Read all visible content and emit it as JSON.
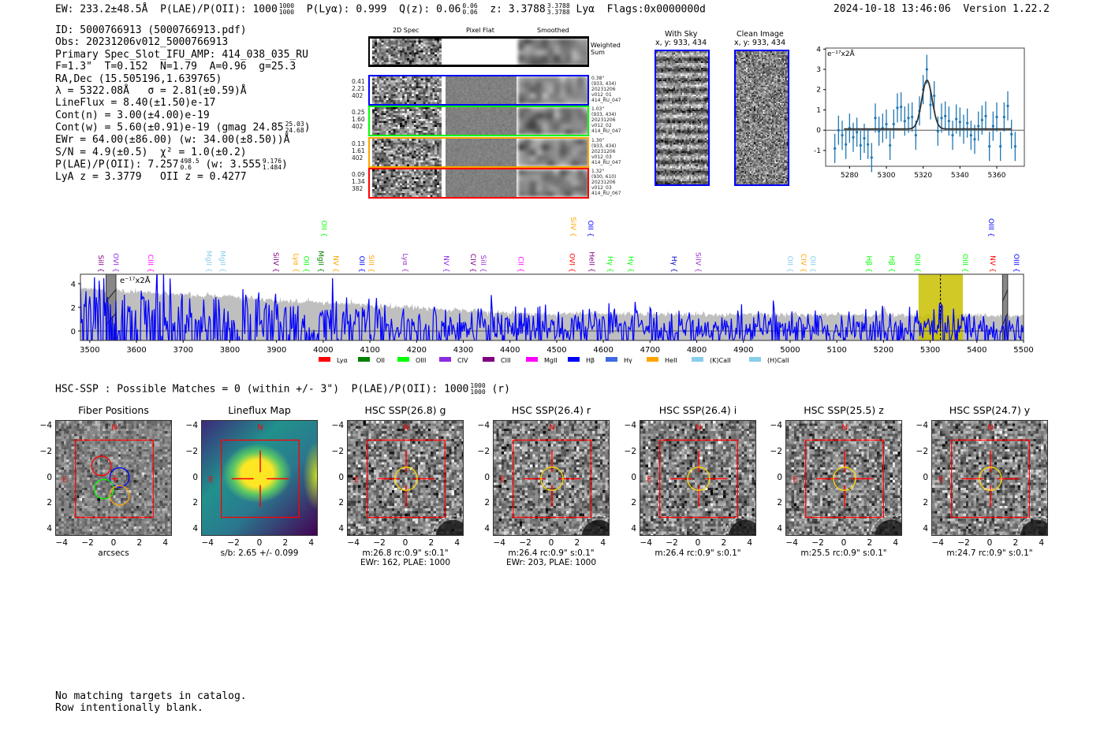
{
  "header": {
    "ew": "EW: 233.2±48.5Å",
    "plae_label": "P(LAE)/P(OII): 1000",
    "plae_hi": "1000",
    "plae_lo": "1000",
    "plya": "P(Lyα): 0.999",
    "qz_label": "Q(z): 0.06",
    "qz_hi": "0.06",
    "qz_lo": "0.06",
    "z_label": "z: 3.3788",
    "z_hi": "3.3788",
    "z_lo": "3.3788",
    "z_line": "Lyα",
    "flags": "Flags:0x0000000d",
    "timestamp": "2024-10-18 13:46:06",
    "version": "Version 1.22.2"
  },
  "info": {
    "id": "ID: 5000766913 (5000766913.pdf)",
    "obs": "Obs: 20231206v012_5000766913",
    "primary": "Primary Spec_Slot_IFU_AMP: 414_038_035_RU",
    "params": "F=1.3\"  T=0.152  N=1.79  A=0.96  g=25.3",
    "radec": "RA,Dec (15.505196,1.639765)",
    "lambda": "λ = 5322.08Å   σ = 2.81(±0.59)Å",
    "lineflux": "LineFlux = 8.40(±1.50)e-17",
    "contn": "Cont(n) = 3.00(±4.00)e-19",
    "contw": "Cont(w) = 5.60(±0.91)e-19 (gmag 24.85",
    "contw_hi": "25.03",
    "contw_lo": "24.68",
    "contw_end": ")",
    "ewr": "EWr = 64.00(±86.00) (w: 34.00(±8.50))Å",
    "sn": "S/N = 4.9(±0.5)  χ² = 1.0(±0.2)",
    "plae": "P(LAE)/P(OII): 7.257",
    "plae_hi": "498.5",
    "plae_lo": "0.6",
    "plae_w": "(w: 3.555",
    "plae_w_hi": "9.176",
    "plae_w_lo": "1.484",
    "plae_w_end": ")",
    "redshifts": "LyA z = 3.3779   OII z = 0.4277"
  },
  "spec2d": {
    "columns": [
      "2D Spec",
      "Pixel Flat",
      "Smoothed"
    ],
    "weighted_label": "Weighted\nSum",
    "rows": [
      {
        "color": "#0000ff",
        "left": "0.41\n2.21\n402",
        "right": "0.38\"\n(933, 434)\n20231206\nv012_01\n414_RU_047"
      },
      {
        "color": "#00ff00",
        "left": "0.25\n1.60\n402",
        "right": "1.03\"\n(933, 434)\n20231206\nv012_02\n414_RU_047"
      },
      {
        "color": "#ffa500",
        "left": "0.13\n1.61\n402",
        "right": "1.30\"\n(933, 434)\n20231206\nv012_03\n414_RU_047"
      },
      {
        "color": "#ff0000",
        "left": "0.09\n1.34\n382",
        "right": "1.32\"\n(930, 610)\n20231206\nv012_03\n414_RU_067"
      }
    ]
  },
  "ccd": {
    "with_sky_title": "With Sky",
    "with_sky_xy": "x, y: 933, 434",
    "clean_title": "Clean Image",
    "clean_xy": "x, y: 933, 434"
  },
  "fiber_colors": {
    "blue": "#0000ff",
    "red": "#ff0000",
    "green": "#00ff00",
    "orange": "#ffa500"
  },
  "chart_data": [
    {
      "type": "scatter",
      "title": "",
      "annotation": "e⁻¹⁷x2Å",
      "xlim": [
        5267,
        5375
      ],
      "ylim": [
        -1.78,
        4.05
      ],
      "xticks": [
        5280,
        5300,
        5320,
        5340,
        5360
      ],
      "yticks": [
        -1,
        0,
        1,
        2,
        3,
        4
      ],
      "x": [
        5272,
        5274,
        5276,
        5278,
        5280,
        5282,
        5284,
        5286,
        5288,
        5290,
        5292,
        5294,
        5296,
        5298,
        5300,
        5302,
        5304,
        5306,
        5308,
        5310,
        5312,
        5314,
        5316,
        5318,
        5320,
        5322,
        5324,
        5326,
        5328,
        5330,
        5332,
        5334,
        5336,
        5338,
        5340,
        5342,
        5344,
        5346,
        5348,
        5350,
        5352,
        5354,
        5356,
        5358,
        5360,
        5362,
        5364,
        5366,
        5368,
        5370
      ],
      "y": [
        -0.9,
        0,
        -0.25,
        -0.7,
        0.1,
        -0.35,
        -0.1,
        -0.75,
        -0.4,
        -0.7,
        -1.35,
        0.6,
        -0.05,
        0.1,
        0.3,
        -0.75,
        0.3,
        1.1,
        1.15,
        0.45,
        0.6,
        0.65,
        -0.25,
        0.95,
        2.0,
        3.0,
        1.25,
        1.7,
        -0.05,
        0.6,
        0.7,
        0.45,
        -0.25,
        0.55,
        0.4,
        0.05,
        0.35,
        -0.25,
        -0.45,
        0.2,
        0.5,
        0.7,
        -0.8,
        0.2,
        0.65,
        -0.8,
        0.65,
        1.2,
        -0.2,
        -0.8
      ],
      "yerr": 0.72,
      "fit": {
        "type": "gaussian",
        "center": 5322.08,
        "sigma": 2.81,
        "amplitude": 2.4,
        "continuum": 0.06,
        "range": [
          5277,
          5368
        ]
      },
      "series_color": "#1f77b4",
      "fit_color": "#333333"
    },
    {
      "type": "line",
      "annotation": "e⁻¹⁷x2Å",
      "xlim": [
        3480,
        5500
      ],
      "ylim": [
        -0.8,
        4.8
      ],
      "xticks": [
        3500,
        3600,
        3700,
        3800,
        3900,
        4000,
        4100,
        4200,
        4300,
        4400,
        4500,
        4600,
        4700,
        4800,
        4900,
        5000,
        5100,
        5200,
        5300,
        5400,
        5500
      ],
      "yticks": [
        0,
        2,
        4
      ],
      "series": [
        {
          "name": "flux",
          "color": "#0000ff"
        },
        {
          "name": "error",
          "color": "#bfbfbf"
        }
      ],
      "highlight_range": [
        5275,
        5370
      ],
      "highlight_color": "#c8c000",
      "line_wavelength": 5322,
      "masked_ranges": [
        [
          3535,
          3556
        ],
        [
          5455,
          5466
        ]
      ],
      "line_labels": [
        {
          "label": "SiII",
          "w": 3524,
          "c": "#800080",
          "row": 2
        },
        {
          "label": "OVI",
          "w": 3556,
          "c": "#8a2be2",
          "row": 2
        },
        {
          "label": "CIII",
          "w": 3630,
          "c": "#ff00ff",
          "row": 2
        },
        {
          "label": "MgII",
          "w": 3755,
          "c": "#87ceeb",
          "row": 2
        },
        {
          "label": "MgII",
          "w": 3785,
          "c": "#87ceeb",
          "row": 2
        },
        {
          "label": "SiIV",
          "w": 3899,
          "c": "#800080",
          "row": 2
        },
        {
          "label": "Lyα",
          "w": 3942,
          "c": "#ffa500",
          "row": 2
        },
        {
          "label": "OII",
          "w": 3964,
          "c": "#00ff00",
          "row": 2
        },
        {
          "label": "MgII",
          "w": 3995,
          "c": "#008000",
          "row": 2
        },
        {
          "label": "NV",
          "w": 4027,
          "c": "#ffa500",
          "row": 2
        },
        {
          "label": "OII",
          "w": 4083,
          "c": "#0000ff",
          "row": 2
        },
        {
          "label": "SiII",
          "w": 4100,
          "c": "#ffa500",
          "row": 2
        },
        {
          "label": "Lyα",
          "w": 4176,
          "c": "#9932cc",
          "row": 2
        },
        {
          "label": "NV",
          "w": 4264,
          "c": "#8a2be2",
          "row": 2
        },
        {
          "label": "CIV",
          "w": 4321,
          "c": "#800080",
          "row": 2
        },
        {
          "label": "SiII",
          "w": 4343,
          "c": "#9932cc",
          "row": 2
        },
        {
          "label": "CII",
          "w": 4423,
          "c": "#ff00ff",
          "row": 2
        },
        {
          "label": "OVI",
          "w": 4533,
          "c": "#ff0000",
          "row": 2
        },
        {
          "label": "HeII",
          "w": 4575,
          "c": "#800080",
          "row": 2
        },
        {
          "label": "Hγ",
          "w": 4615,
          "c": "#00ff00",
          "row": 2
        },
        {
          "label": "Hγ",
          "w": 4659,
          "c": "#00ff00",
          "row": 2
        },
        {
          "label": "Hγ",
          "w": 4752,
          "c": "#0000cd",
          "row": 2
        },
        {
          "label": "SiIV",
          "w": 4803,
          "c": "#9932cc",
          "row": 2
        },
        {
          "label": "OII",
          "w": 5000,
          "c": "#87ceeb",
          "row": 2
        },
        {
          "label": "CIV",
          "w": 5029,
          "c": "#ffa500",
          "row": 2
        },
        {
          "label": "OII",
          "w": 5046,
          "c": "#87ceeb",
          "row": 2
        },
        {
          "label": "Hβ",
          "w": 5169,
          "c": "#00ff00",
          "row": 2
        },
        {
          "label": "Hβ",
          "w": 5218,
          "c": "#00ff00",
          "row": 2
        },
        {
          "label": "OIII",
          "w": 5273,
          "c": "#00ff00",
          "row": 2
        },
        {
          "label": "OIII",
          "w": 5375,
          "c": "#00ff00",
          "row": 2
        },
        {
          "label": "NV",
          "w": 5434,
          "c": "#ff0000",
          "row": 2
        },
        {
          "label": "OIII",
          "w": 5485,
          "c": "#0000ff",
          "row": 2
        },
        {
          "label": "OII",
          "w": 4002,
          "c": "#00ff00",
          "row": 1
        },
        {
          "label": "SiIV",
          "w": 4536,
          "c": "#ffa500",
          "row": 1
        },
        {
          "label": "OII",
          "w": 4573,
          "c": "#0000ff",
          "row": 1
        },
        {
          "label": "OIII",
          "w": 5431,
          "c": "#0000ff",
          "row": 1
        }
      ],
      "legend": [
        {
          "label": "Lyα",
          "c": "#ff0000"
        },
        {
          "label": "OII",
          "c": "#008000"
        },
        {
          "label": "OIII",
          "c": "#00ff00"
        },
        {
          "label": "CIV",
          "c": "#8a2be2"
        },
        {
          "label": "CIII",
          "c": "#800080"
        },
        {
          "label": "MgII",
          "c": "#ff00ff"
        },
        {
          "label": "Hβ",
          "c": "#0000ff"
        },
        {
          "label": "Hγ",
          "c": "#4169e1"
        },
        {
          "label": "HeII",
          "c": "#ffa500"
        },
        {
          "label": "(K)CaII",
          "c": "#87ceeb"
        },
        {
          "label": "(H)CaII",
          "c": "#87ceeb"
        }
      ],
      "legend_position": "bottom-center"
    }
  ],
  "hsc": {
    "title": "HSC-SSP : Possible Matches = 0 (within +/- 3\")  P(LAE)/P(OII): 1000",
    "title_hi": "1000",
    "title_lo": "1000",
    "title_end": "(r)",
    "axis_ticks": [
      "−4",
      "−2",
      "0",
      "2",
      "4"
    ],
    "north": "N",
    "east": "E",
    "panels": [
      {
        "title": "Fiber Positions",
        "kind": "fiber",
        "caption1": "arcsecs",
        "caption2": ""
      },
      {
        "title": "Lineflux Map",
        "kind": "lineflux",
        "caption1": "s/b: 2.65 +/- 0.099",
        "caption2": ""
      },
      {
        "title": "HSC SSP(26.8) g",
        "kind": "hsc",
        "caption1": "m:26.8 rc:0.9\"  s:0.1\"",
        "caption2": "EWr: 162, PLAE: 1000"
      },
      {
        "title": "HSC SSP(26.4) r",
        "kind": "hsc",
        "caption1": "m:26.4 rc:0.9\"  s:0.1\"",
        "caption2": "EWr: 203, PLAE: 1000"
      },
      {
        "title": "HSC SSP(26.4) i",
        "kind": "hsc",
        "caption1": "m:26.4 rc:0.9\"  s:0.1\"",
        "caption2": ""
      },
      {
        "title": "HSC SSP(25.5) z",
        "kind": "hsc",
        "caption1": "m:25.5 rc:0.9\"  s:0.1\"",
        "caption2": ""
      },
      {
        "title": "HSC SSP(24.7) y",
        "kind": "hsc",
        "caption1": "m:24.7 rc:0.9\"  s:0.1\"",
        "caption2": ""
      }
    ]
  },
  "footer": {
    "line1": "No matching targets in catalog.",
    "line2": "Row intentionally blank."
  }
}
